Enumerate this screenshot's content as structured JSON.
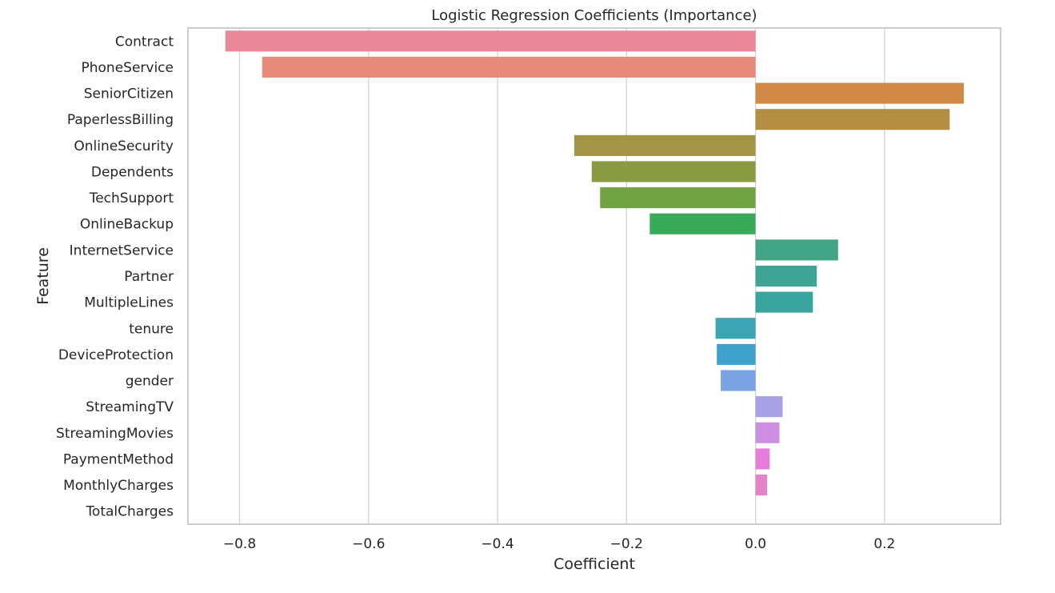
{
  "chart_data": {
    "type": "bar",
    "orientation": "horizontal",
    "title": "Logistic Regression Coefficients (Importance)",
    "xlabel": "Coefficient",
    "ylabel": "Feature",
    "xlim": [
      -0.88,
      0.38
    ],
    "xticks": [
      -0.8,
      -0.6,
      -0.4,
      -0.2,
      0.0,
      0.2
    ],
    "xtick_labels": [
      "−0.8",
      "−0.6",
      "−0.4",
      "−0.2",
      "0.0",
      "0.2"
    ],
    "grid": true,
    "categories": [
      "Contract",
      "PhoneService",
      "SeniorCitizen",
      "PaperlessBilling",
      "OnlineSecurity",
      "Dependents",
      "TechSupport",
      "OnlineBackup",
      "InternetService",
      "Partner",
      "MultipleLines",
      "tenure",
      "DeviceProtection",
      "gender",
      "StreamingTV",
      "StreamingMovies",
      "PaymentMethod",
      "MonthlyCharges",
      "TotalCharges"
    ],
    "values": [
      -0.822,
      -0.765,
      0.323,
      0.301,
      -0.281,
      -0.254,
      -0.241,
      -0.164,
      0.128,
      0.095,
      0.089,
      -0.062,
      -0.06,
      -0.054,
      0.042,
      0.037,
      0.022,
      0.018,
      0.0
    ],
    "colors": [
      "#e98899",
      "#e68a79",
      "#d08a46",
      "#b48f43",
      "#a39446",
      "#8a9b44",
      "#72a443",
      "#3aaa5a",
      "#41a586",
      "#3ea495",
      "#3aa59f",
      "#3ba5b3",
      "#3ea2cc",
      "#79a3e3",
      "#a9a0e6",
      "#cc8fe4",
      "#e77ddc",
      "#e882c6",
      "#e98aa8"
    ]
  }
}
